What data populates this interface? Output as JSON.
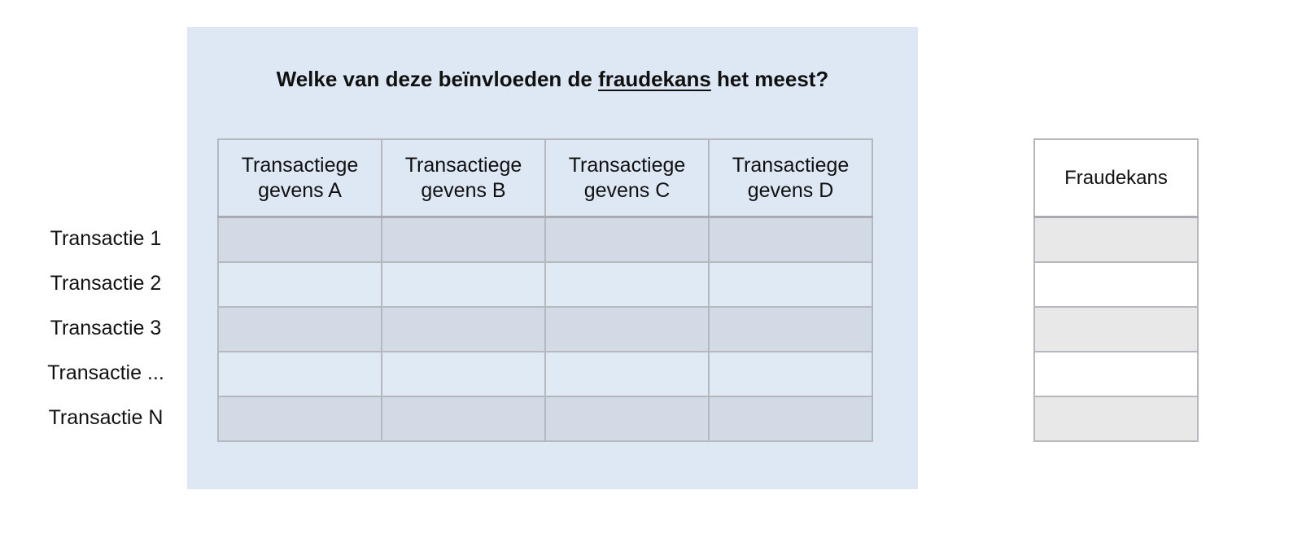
{
  "title_prefix": "Welke van deze beïnvloeden de ",
  "title_underlined": "fraudekans",
  "title_suffix": " het meest?",
  "columns": [
    {
      "line1": "Transactiege",
      "line2": "gevens A"
    },
    {
      "line1": "Transactiege",
      "line2": "gevens B"
    },
    {
      "line1": "Transactiege",
      "line2": "gevens C"
    },
    {
      "line1": "Transactiege",
      "line2": "gevens D"
    }
  ],
  "rows": [
    "Transactie 1",
    "Transactie 2",
    "Transactie 3",
    "Transactie ...",
    "Transactie N"
  ],
  "output_header": "Fraudekans",
  "colors": {
    "panel": "#dde8f4",
    "row_dark": "#d2dbe5",
    "row_light": "#e0eaf5",
    "output_dark": "#e8e8e8"
  }
}
